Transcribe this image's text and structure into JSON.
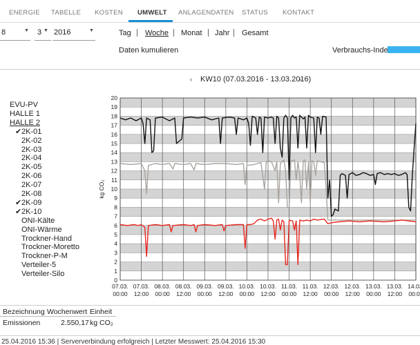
{
  "nav": {
    "tabs": [
      "ENERGIE",
      "TABELLE",
      "KOSTEN",
      "UMWELT",
      "ANLAGENDATEN",
      "STATUS",
      "KONTAKT"
    ],
    "active": "UMWELT",
    "accent": "#1a8fd5"
  },
  "date": {
    "day": "8",
    "month": "3",
    "year": "2016"
  },
  "periods": [
    "Tag",
    "Woche",
    "Monat",
    "Jahr",
    "Gesamt"
  ],
  "active_period": "Woche",
  "cumulate_label": "Daten kumulieren",
  "consumption_index": {
    "label": "Verbrauchs-Index",
    "color": "#3ab3f0"
  },
  "week_nav": {
    "label": "KW10 (07.03.2016 - 13.03.2016)",
    "prev": "‹",
    "next": "›"
  },
  "tree": [
    {
      "label": "EVU-PV",
      "level": 0,
      "underline": false,
      "checked": false
    },
    {
      "label": "HALLE 1",
      "level": 0,
      "underline": false,
      "checked": false
    },
    {
      "label": "HALLE 2",
      "level": 0,
      "underline": true,
      "checked": false
    },
    {
      "label": "2K-01",
      "level": 1,
      "underline": false,
      "checked": true
    },
    {
      "label": "2K-02",
      "level": 1,
      "underline": false,
      "checked": false
    },
    {
      "label": "2K-03",
      "level": 1,
      "underline": false,
      "checked": false
    },
    {
      "label": "2K-04",
      "level": 1,
      "underline": false,
      "checked": false
    },
    {
      "label": "2K-05",
      "level": 1,
      "underline": false,
      "checked": false
    },
    {
      "label": "2K-06",
      "level": 1,
      "underline": false,
      "checked": false
    },
    {
      "label": "2K-07",
      "level": 1,
      "underline": false,
      "checked": false
    },
    {
      "label": "2K-08",
      "level": 1,
      "underline": false,
      "checked": false
    },
    {
      "label": "2K-09",
      "level": 1,
      "underline": false,
      "checked": true
    },
    {
      "label": "2K-10",
      "level": 1,
      "underline": false,
      "checked": true
    },
    {
      "label": "ONI-Kälte",
      "level": 1,
      "underline": false,
      "checked": false
    },
    {
      "label": "ONI-Wärme",
      "level": 1,
      "underline": false,
      "checked": false
    },
    {
      "label": "Trockner-Hand",
      "level": 1,
      "underline": false,
      "checked": false
    },
    {
      "label": "Trockner-Moretto",
      "level": 1,
      "underline": false,
      "checked": false
    },
    {
      "label": "Trockner-P-M",
      "level": 1,
      "underline": false,
      "checked": false
    },
    {
      "label": "Verteiler-5",
      "level": 1,
      "underline": false,
      "checked": false
    },
    {
      "label": "Verteiler-Silo",
      "level": 1,
      "underline": false,
      "checked": false
    }
  ],
  "chart_data": {
    "type": "line",
    "ylabel": "kg CO₂",
    "ylim": [
      0,
      20
    ],
    "yticks": [
      0,
      1,
      2,
      3,
      4,
      5,
      6,
      7,
      8,
      9,
      10,
      11,
      12,
      13,
      14,
      15,
      16,
      17,
      18,
      19,
      20
    ],
    "x_range": [
      0,
      168
    ],
    "x_unit": "hours since 07.03. 00:00",
    "xticks": [
      {
        "h": 0,
        "date": "07.03.",
        "time": "00:00"
      },
      {
        "h": 12,
        "date": "07.03.",
        "time": "12:00"
      },
      {
        "h": 24,
        "date": "08.03.",
        "time": "00:00"
      },
      {
        "h": 36,
        "date": "08.03.",
        "time": "12:00"
      },
      {
        "h": 48,
        "date": "09.03.",
        "time": "00:00"
      },
      {
        "h": 60,
        "date": "09.03.",
        "time": "12:00"
      },
      {
        "h": 72,
        "date": "10.03.",
        "time": "00:00"
      },
      {
        "h": 84,
        "date": "10.03.",
        "time": "12:00"
      },
      {
        "h": 96,
        "date": "11.03.",
        "time": "00:00"
      },
      {
        "h": 108,
        "date": "11.03.",
        "time": "12:00"
      },
      {
        "h": 120,
        "date": "12.03.",
        "time": "00:00"
      },
      {
        "h": 132,
        "date": "12.03.",
        "time": "12:00"
      },
      {
        "h": 144,
        "date": "13.03.",
        "time": "00:00"
      },
      {
        "h": 156,
        "date": "13.03.",
        "time": "12:00"
      },
      {
        "h": 168,
        "date": "14.03.",
        "time": "00:00"
      }
    ],
    "grid": true,
    "series": [
      {
        "color": "#111111",
        "points": [
          [
            0,
            17.8
          ],
          [
            3,
            17.6
          ],
          [
            6,
            17.8
          ],
          [
            9,
            17.5
          ],
          [
            12,
            17.8
          ],
          [
            13,
            17.2
          ],
          [
            14,
            15
          ],
          [
            15,
            17.8
          ],
          [
            17,
            17.6
          ],
          [
            18,
            14
          ],
          [
            19,
            14.2
          ],
          [
            20,
            17.8
          ],
          [
            24,
            17.9
          ],
          [
            28,
            17.5
          ],
          [
            31,
            17.8
          ],
          [
            32,
            15
          ],
          [
            35,
            15.5
          ],
          [
            36,
            17.8
          ],
          [
            40,
            17.9
          ],
          [
            44,
            17.8
          ],
          [
            48,
            17.9
          ],
          [
            52,
            17.6
          ],
          [
            56,
            17.8
          ],
          [
            57,
            15
          ],
          [
            58,
            17.8
          ],
          [
            62,
            17.9
          ],
          [
            65,
            17.8
          ],
          [
            66,
            16
          ],
          [
            67,
            17.8
          ],
          [
            70,
            17.6
          ],
          [
            72,
            17.8
          ],
          [
            73,
            17.2
          ],
          [
            74,
            14.8
          ],
          [
            75,
            18
          ],
          [
            77,
            17.8
          ],
          [
            78,
            16
          ],
          [
            79,
            17.9
          ],
          [
            80,
            17.8
          ],
          [
            81,
            14
          ],
          [
            82,
            17.9
          ],
          [
            84,
            17.8
          ],
          [
            86,
            17.9
          ],
          [
            87,
            17.8
          ],
          [
            88,
            15
          ],
          [
            89,
            18
          ],
          [
            90,
            17.8
          ],
          [
            91,
            14.5
          ],
          [
            92,
            13.5
          ],
          [
            93,
            17.8
          ],
          [
            94,
            18.1
          ],
          [
            95,
            17.8
          ],
          [
            96,
            11
          ],
          [
            97,
            17.8
          ],
          [
            98,
            18.1
          ],
          [
            99,
            17.8
          ],
          [
            100,
            17.9
          ],
          [
            101,
            14.5
          ],
          [
            102,
            18.1
          ],
          [
            103,
            17.9
          ],
          [
            104,
            17.7
          ],
          [
            105,
            17.9
          ],
          [
            106,
            14.5
          ],
          [
            107,
            18.1
          ],
          [
            108,
            17.9
          ],
          [
            110,
            17.8
          ],
          [
            111,
            14
          ],
          [
            112,
            17.9
          ],
          [
            113,
            17.8
          ],
          [
            114,
            16
          ],
          [
            115,
            18
          ],
          [
            117,
            17.9
          ],
          [
            118,
            9
          ],
          [
            119,
            11
          ],
          [
            120,
            7
          ],
          [
            121,
            7.2
          ],
          [
            122,
            7.8
          ],
          [
            124,
            7.6
          ],
          [
            125,
            11.5
          ],
          [
            126,
            11.7
          ],
          [
            128,
            11.5
          ],
          [
            129,
            9
          ],
          [
            130,
            11.6
          ],
          [
            132,
            11.8
          ],
          [
            134,
            11.5
          ],
          [
            136,
            11.6
          ],
          [
            138,
            11.8
          ],
          [
            140,
            11.7
          ],
          [
            142,
            11.5
          ],
          [
            144,
            11.6
          ],
          [
            145,
            10.5
          ],
          [
            146,
            11.7
          ],
          [
            148,
            11.8
          ],
          [
            150,
            11.6
          ],
          [
            152,
            11.7
          ],
          [
            154,
            11.6
          ],
          [
            156,
            11.7
          ],
          [
            158,
            11.5
          ],
          [
            160,
            11.6
          ],
          [
            162,
            11.8
          ],
          [
            163,
            11.6
          ],
          [
            164,
            8
          ],
          [
            165,
            7.6
          ],
          [
            166,
            11.5
          ],
          [
            167,
            14.5
          ],
          [
            168,
            17.2
          ]
        ]
      },
      {
        "color": "#a8a39e",
        "points": [
          [
            0,
            12.8
          ],
          [
            6,
            12.7
          ],
          [
            12,
            12.8
          ],
          [
            14,
            12
          ],
          [
            15,
            9.5
          ],
          [
            16,
            12.6
          ],
          [
            20,
            12.8
          ],
          [
            24,
            12.7
          ],
          [
            28,
            12.8
          ],
          [
            30,
            12.2
          ],
          [
            31,
            12.8
          ],
          [
            36,
            12.7
          ],
          [
            40,
            12.8
          ],
          [
            42,
            12.1
          ],
          [
            43,
            12.8
          ],
          [
            48,
            12.7
          ],
          [
            54,
            12.8
          ],
          [
            60,
            12.8
          ],
          [
            66,
            12.7
          ],
          [
            70,
            12.8
          ],
          [
            71,
            10.5
          ],
          [
            72,
            12.6
          ],
          [
            76,
            12.7
          ],
          [
            80,
            12.9
          ],
          [
            82,
            10
          ],
          [
            83,
            13
          ],
          [
            84,
            13.1
          ],
          [
            86,
            13
          ],
          [
            88,
            12
          ],
          [
            89,
            13
          ],
          [
            90,
            8.5
          ],
          [
            91,
            12.8
          ],
          [
            93,
            13.2
          ],
          [
            94,
            12
          ],
          [
            95,
            8
          ],
          [
            96,
            8
          ],
          [
            97,
            13.1
          ],
          [
            99,
            13.2
          ],
          [
            100,
            11
          ],
          [
            101,
            13
          ],
          [
            102,
            11.5
          ],
          [
            103,
            8.5
          ],
          [
            104,
            13.1
          ],
          [
            105,
            13.2
          ],
          [
            106,
            10
          ],
          [
            107,
            13
          ],
          [
            108,
            8.5
          ],
          [
            109,
            13.1
          ],
          [
            110,
            13
          ],
          [
            111,
            11.5
          ],
          [
            112,
            13.1
          ],
          [
            114,
            13
          ],
          [
            116,
            12.9
          ],
          [
            117,
            10
          ],
          [
            118,
            6.6
          ],
          [
            120,
            6.6
          ],
          [
            130,
            6.6
          ],
          [
            140,
            6.6
          ],
          [
            150,
            6.6
          ],
          [
            160,
            6.6
          ],
          [
            168,
            6.6
          ]
        ]
      },
      {
        "color": "#e8261f",
        "points": [
          [
            0,
            6.1
          ],
          [
            4,
            6
          ],
          [
            8,
            6.1
          ],
          [
            10,
            6
          ],
          [
            12,
            6.1
          ],
          [
            14,
            5.8
          ],
          [
            15,
            2.6
          ],
          [
            16,
            6
          ],
          [
            20,
            6.1
          ],
          [
            24,
            6
          ],
          [
            28,
            6.1
          ],
          [
            29,
            5.3
          ],
          [
            30,
            6
          ],
          [
            36,
            6.1
          ],
          [
            40,
            6
          ],
          [
            42,
            6.1
          ],
          [
            43,
            5.3
          ],
          [
            44,
            6
          ],
          [
            48,
            6.1
          ],
          [
            54,
            6
          ],
          [
            58,
            6.1
          ],
          [
            59,
            5.4
          ],
          [
            60,
            6
          ],
          [
            66,
            6.1
          ],
          [
            70,
            6.1
          ],
          [
            71,
            3.5
          ],
          [
            72,
            6.1
          ],
          [
            74,
            6.1
          ],
          [
            76,
            6.2
          ],
          [
            78,
            6.6
          ],
          [
            80,
            6.7
          ],
          [
            82,
            6.5
          ],
          [
            84,
            6.7
          ],
          [
            86,
            6.8
          ],
          [
            87,
            6.5
          ],
          [
            88,
            4.5
          ],
          [
            89,
            6.6
          ],
          [
            90,
            6.7
          ],
          [
            91,
            5.5
          ],
          [
            92,
            6.6
          ],
          [
            93,
            6.4
          ],
          [
            94,
            1.7
          ],
          [
            95,
            1.7
          ],
          [
            96,
            6.6
          ],
          [
            98,
            6.5
          ],
          [
            99,
            5.5
          ],
          [
            100,
            6.5
          ],
          [
            101,
            1.7
          ],
          [
            102,
            6.6
          ],
          [
            104,
            6.5
          ],
          [
            106,
            6.6
          ],
          [
            108,
            6.5
          ],
          [
            110,
            6.7
          ],
          [
            112,
            6.6
          ],
          [
            116,
            6.7
          ],
          [
            118,
            6.2
          ],
          [
            120,
            6.3
          ],
          [
            124,
            6.4
          ],
          [
            130,
            6.5
          ],
          [
            136,
            6.4
          ],
          [
            142,
            6.5
          ],
          [
            150,
            6.4
          ],
          [
            156,
            6.5
          ],
          [
            160,
            6.6
          ],
          [
            164,
            6.5
          ],
          [
            168,
            6.4
          ]
        ]
      }
    ]
  },
  "summary_table": {
    "headers": [
      "Bezeichnung",
      "Wochenwert",
      "Einheit"
    ],
    "row": {
      "name": "Emissionen",
      "value": "2.550,17",
      "unit": "kg CO₂"
    }
  },
  "status_text": "25.04.2016 15:36 | Serververbindung erfolgreich | Letzter Messwert: 25.04.2016 15:30"
}
